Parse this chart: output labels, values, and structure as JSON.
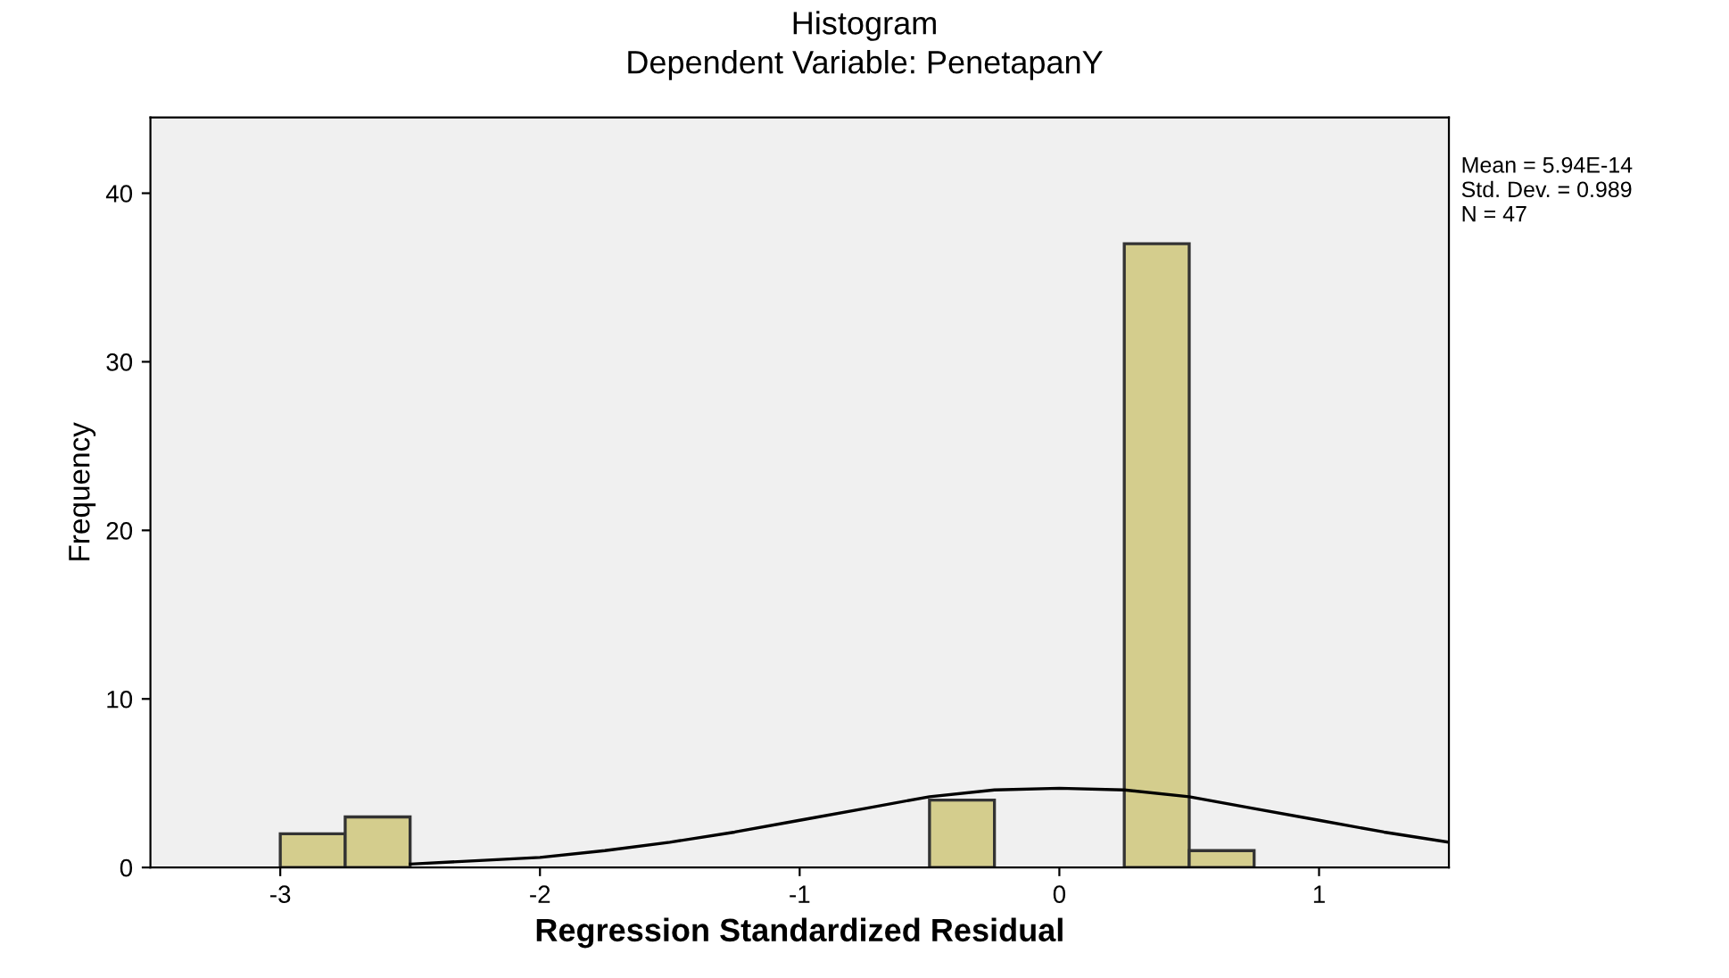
{
  "chart_data": {
    "type": "histogram",
    "title": "Histogram",
    "subtitle": "Dependent Variable: PenetapanY",
    "xlabel": "Regression Standardized Residual",
    "ylabel": "Frequency",
    "bins": [
      -3,
      -2.75,
      -2.5,
      -2.25,
      -2,
      -1.75,
      -1.5,
      -1.25,
      -1,
      -0.75,
      -0.5,
      -0.25,
      0,
      0.25,
      0.5,
      0.75
    ],
    "values": [
      2,
      3,
      0,
      0,
      0,
      0,
      0,
      0,
      0,
      0,
      4,
      0,
      0,
      37,
      1
    ],
    "color": "#d4cd8d",
    "series": [
      {
        "type": "line",
        "color": "#000000",
        "x": [
          -2.5,
          -2.25,
          -2,
          -1.75,
          -1.5,
          -1.25,
          -1,
          -0.75,
          -0.5,
          -0.25,
          0,
          0.25,
          0.5,
          0.75,
          1,
          1.25,
          1.5
        ],
        "values": [
          0.2,
          0.4,
          0.6,
          1.0,
          1.5,
          2.1,
          2.8,
          3.5,
          4.2,
          4.6,
          4.7,
          4.6,
          4.2,
          3.5,
          2.8,
          2.1,
          1.5
        ]
      }
    ],
    "xlim": [
      -3.5,
      1.5
    ],
    "xticks": [
      -3,
      -2,
      -1,
      0,
      1
    ],
    "ylim": [
      0,
      44.5
    ],
    "yticks": [
      0,
      10,
      20,
      30,
      40
    ],
    "annotations": [
      "Mean = 5.94E-14",
      "Std. Dev. = 0.989",
      "N = 47"
    ],
    "grid": false,
    "legend": false
  }
}
